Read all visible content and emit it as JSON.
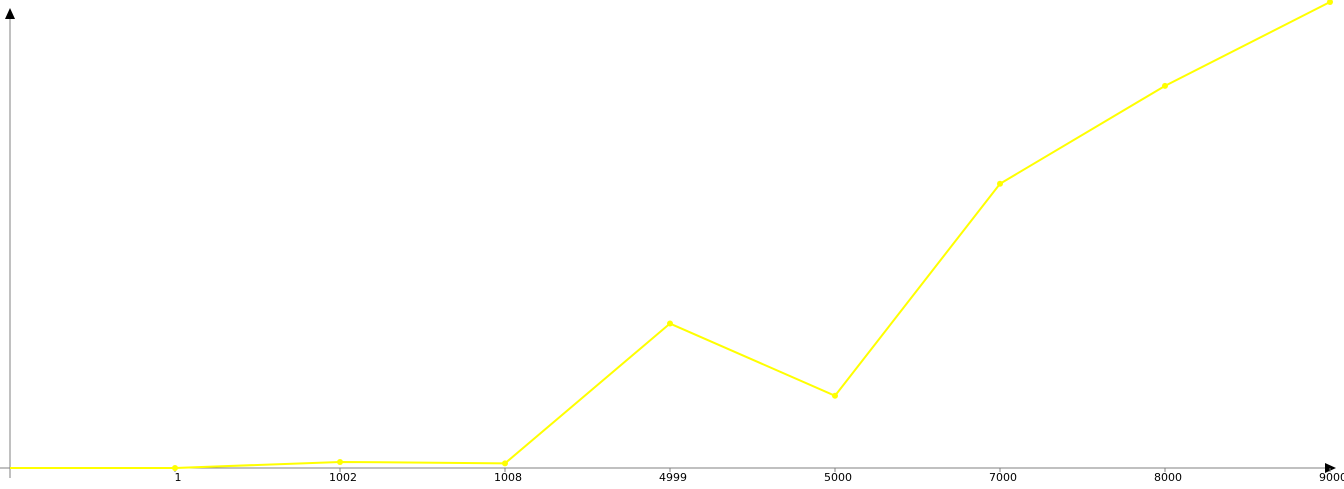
{
  "chart_data": {
    "type": "line",
    "categories": [
      "",
      "1",
      "1002",
      "1008",
      "4999",
      "5000",
      "7000",
      "8000",
      "9000"
    ],
    "series": [
      {
        "values": [
          0,
          0,
          1.3,
          1.0,
          31.0,
          15.5,
          61.0,
          82.0,
          100.0
        ]
      }
    ],
    "ylim": [
      0,
      100
    ],
    "grid": false,
    "legend": "none",
    "colors": {
      "line": "#ffff00",
      "axis": "#808080",
      "arrow": "#000000",
      "background": "#ffffff"
    }
  }
}
